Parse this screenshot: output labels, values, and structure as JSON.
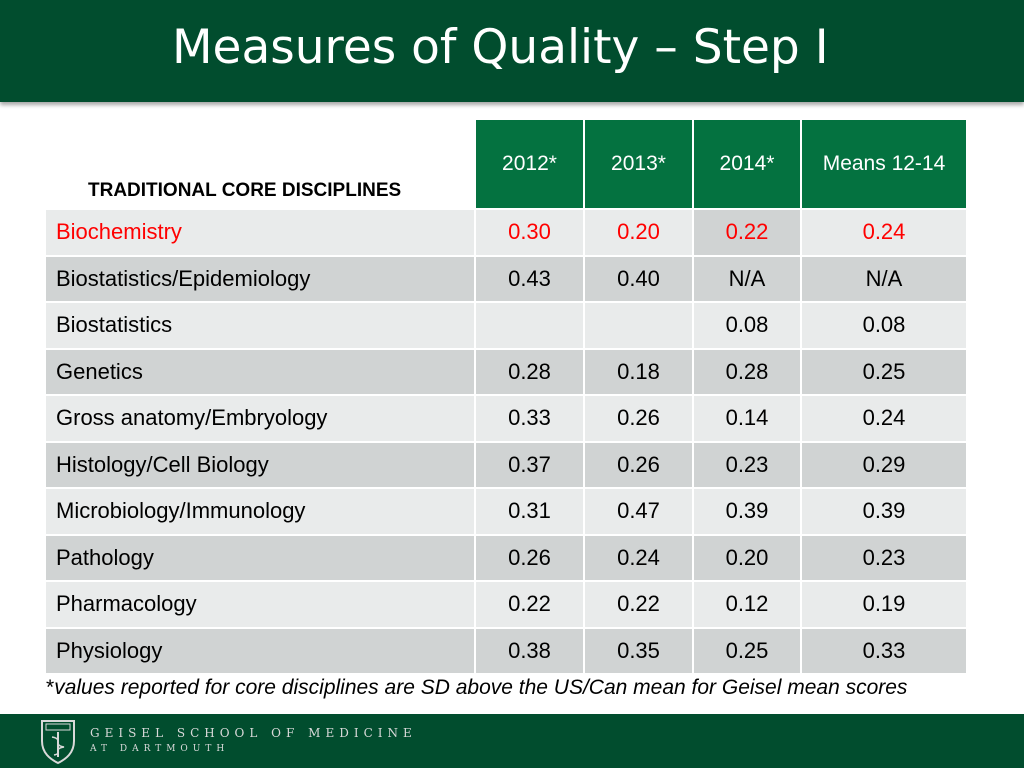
{
  "title": "Measures of Quality – Step I",
  "table": {
    "corner_label": "TRADITIONAL CORE DISCIPLINES",
    "headers": [
      "2012*",
      "2013*",
      "2014*",
      "Means 12-14"
    ],
    "rows": [
      {
        "name": "Biochemistry",
        "values": [
          "0.30",
          "0.20",
          "0.22",
          "0.24"
        ]
      },
      {
        "name": "Biostatistics/Epidemiology",
        "values": [
          "0.43",
          "0.40",
          "N/A",
          "N/A"
        ]
      },
      {
        "name": "Biostatistics",
        "values": [
          "",
          "",
          "0.08",
          "0.08"
        ]
      },
      {
        "name": "Genetics",
        "values": [
          "0.28",
          "0.18",
          "0.28",
          "0.25"
        ]
      },
      {
        "name": "Gross anatomy/Embryology",
        "values": [
          "0.33",
          "0.26",
          "0.14",
          "0.24"
        ]
      },
      {
        "name": "Histology/Cell Biology",
        "values": [
          "0.37",
          "0.26",
          "0.23",
          "0.29"
        ]
      },
      {
        "name": "Microbiology/Immunology",
        "values": [
          "0.31",
          "0.47",
          "0.39",
          "0.39"
        ]
      },
      {
        "name": "Pathology",
        "values": [
          "0.26",
          "0.24",
          "0.20",
          "0.23"
        ]
      },
      {
        "name": "Pharmacology",
        "values": [
          "0.22",
          "0.22",
          "0.12",
          "0.19"
        ]
      },
      {
        "name": "Physiology",
        "values": [
          "0.38",
          "0.35",
          "0.25",
          "0.33"
        ]
      }
    ]
  },
  "footnote": {
    "star": "*",
    "text": "values reported for core disciplines are SD above the US/Can mean for Geisel mean scores"
  },
  "footer": {
    "school_line1": "GEISEL SCHOOL OF MEDICINE",
    "school_line2": "AT DARTMOUTH",
    "logo_icon": "geisel-shield-logo-icon"
  },
  "colors": {
    "title_bar": "#014d2e",
    "header_green": "#047240",
    "row_light": "#e9ebeb",
    "row_dark": "#d0d3d3",
    "highlight_text": "#ff0000"
  }
}
